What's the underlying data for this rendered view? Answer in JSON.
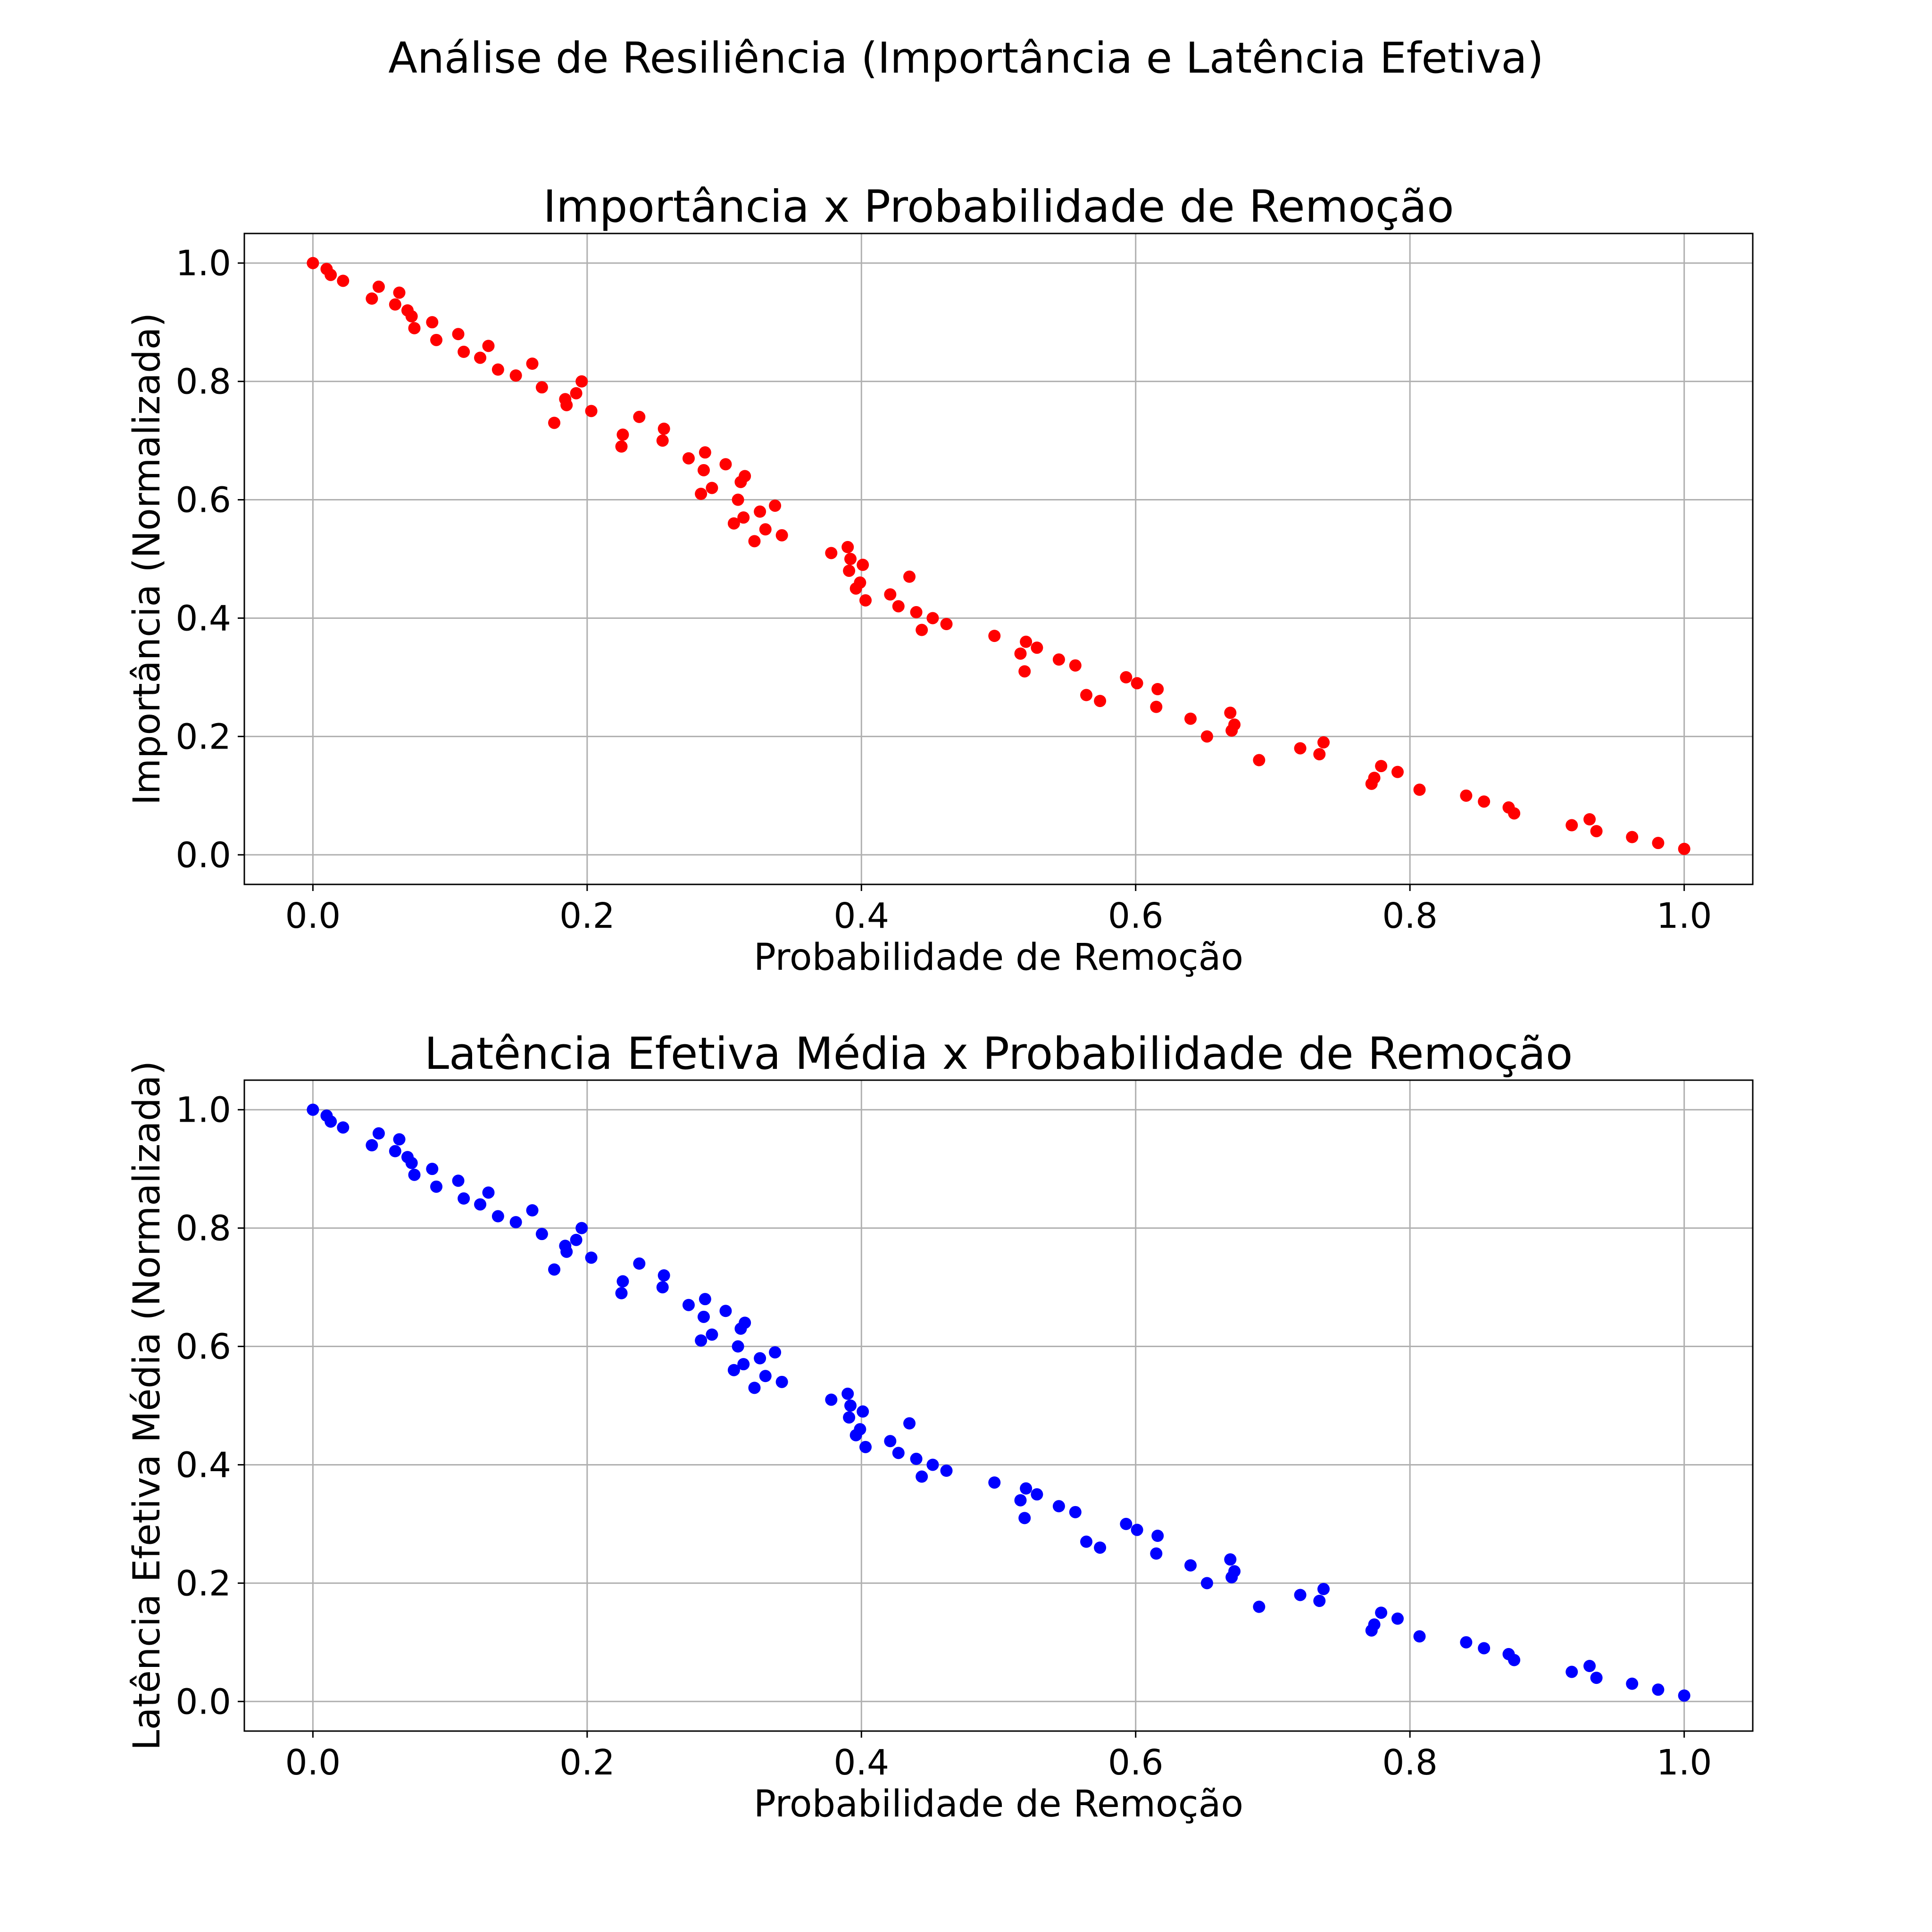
{
  "suptitle": "Análise de Resiliência (Importância e Latência Efetiva)",
  "chart_data": [
    {
      "type": "scatter",
      "title": "Importância x Probabilidade de Remoção",
      "xlabel": "Probabilidade de Remoção",
      "ylabel": "Importância (Normalizada)",
      "xlim": [
        -0.05,
        1.05
      ],
      "ylim": [
        -0.05,
        1.05
      ],
      "xticks": [
        "0.0",
        "0.2",
        "0.4",
        "0.6",
        "0.8",
        "1.0"
      ],
      "yticks": [
        "0.0",
        "0.2",
        "0.4",
        "0.6",
        "0.8",
        "1.0"
      ],
      "grid": true,
      "color": "#ff0000",
      "points": [
        [
          0.0,
          1.0
        ],
        [
          0.01,
          0.99
        ],
        [
          0.013,
          0.98
        ],
        [
          0.022,
          0.97
        ],
        [
          0.043,
          0.94
        ],
        [
          0.048,
          0.96
        ],
        [
          0.06,
          0.93
        ],
        [
          0.063,
          0.95
        ],
        [
          0.069,
          0.92
        ],
        [
          0.072,
          0.91
        ],
        [
          0.074,
          0.89
        ],
        [
          0.087,
          0.9
        ],
        [
          0.09,
          0.87
        ],
        [
          0.106,
          0.88
        ],
        [
          0.11,
          0.85
        ],
        [
          0.122,
          0.84
        ],
        [
          0.128,
          0.86
        ],
        [
          0.135,
          0.82
        ],
        [
          0.148,
          0.81
        ],
        [
          0.16,
          0.83
        ],
        [
          0.167,
          0.79
        ],
        [
          0.176,
          0.73
        ],
        [
          0.184,
          0.77
        ],
        [
          0.185,
          0.76
        ],
        [
          0.192,
          0.78
        ],
        [
          0.196,
          0.8
        ],
        [
          0.203,
          0.75
        ],
        [
          0.225,
          0.69
        ],
        [
          0.226,
          0.71
        ],
        [
          0.238,
          0.74
        ],
        [
          0.255,
          0.7
        ],
        [
          0.256,
          0.72
        ],
        [
          0.274,
          0.67
        ],
        [
          0.283,
          0.61
        ],
        [
          0.285,
          0.65
        ],
        [
          0.286,
          0.68
        ],
        [
          0.291,
          0.62
        ],
        [
          0.301,
          0.66
        ],
        [
          0.307,
          0.56
        ],
        [
          0.31,
          0.6
        ],
        [
          0.312,
          0.63
        ],
        [
          0.314,
          0.57
        ],
        [
          0.315,
          0.64
        ],
        [
          0.322,
          0.53
        ],
        [
          0.326,
          0.58
        ],
        [
          0.33,
          0.55
        ],
        [
          0.337,
          0.59
        ],
        [
          0.342,
          0.54
        ],
        [
          0.378,
          0.51
        ],
        [
          0.39,
          0.52
        ],
        [
          0.391,
          0.48
        ],
        [
          0.392,
          0.5
        ],
        [
          0.396,
          0.45
        ],
        [
          0.399,
          0.46
        ],
        [
          0.401,
          0.49
        ],
        [
          0.403,
          0.43
        ],
        [
          0.421,
          0.44
        ],
        [
          0.427,
          0.42
        ],
        [
          0.435,
          0.47
        ],
        [
          0.44,
          0.41
        ],
        [
          0.444,
          0.38
        ],
        [
          0.452,
          0.4
        ],
        [
          0.462,
          0.39
        ],
        [
          0.497,
          0.37
        ],
        [
          0.516,
          0.34
        ],
        [
          0.519,
          0.31
        ],
        [
          0.52,
          0.36
        ],
        [
          0.528,
          0.35
        ],
        [
          0.544,
          0.33
        ],
        [
          0.556,
          0.32
        ],
        [
          0.564,
          0.27
        ],
        [
          0.574,
          0.26
        ],
        [
          0.593,
          0.3
        ],
        [
          0.601,
          0.29
        ],
        [
          0.615,
          0.25
        ],
        [
          0.616,
          0.28
        ],
        [
          0.64,
          0.23
        ],
        [
          0.652,
          0.2
        ],
        [
          0.669,
          0.24
        ],
        [
          0.67,
          0.21
        ],
        [
          0.672,
          0.22
        ],
        [
          0.69,
          0.16
        ],
        [
          0.72,
          0.18
        ],
        [
          0.734,
          0.17
        ],
        [
          0.737,
          0.19
        ],
        [
          0.772,
          0.12
        ],
        [
          0.774,
          0.13
        ],
        [
          0.779,
          0.15
        ],
        [
          0.791,
          0.14
        ],
        [
          0.807,
          0.11
        ],
        [
          0.841,
          0.1
        ],
        [
          0.854,
          0.09
        ],
        [
          0.872,
          0.08
        ],
        [
          0.876,
          0.07
        ],
        [
          0.918,
          0.05
        ],
        [
          0.931,
          0.06
        ],
        [
          0.936,
          0.04
        ],
        [
          0.962,
          0.03
        ],
        [
          0.981,
          0.02
        ],
        [
          1.0,
          0.01
        ]
      ]
    },
    {
      "type": "scatter",
      "title": "Latência Efetiva Média x Probabilidade de Remoção",
      "xlabel": "Probabilidade de Remoção",
      "ylabel": "Latência Efetiva Média (Normalizada)",
      "xlim": [
        -0.05,
        1.05
      ],
      "ylim": [
        -0.05,
        1.05
      ],
      "xticks": [
        "0.0",
        "0.2",
        "0.4",
        "0.6",
        "0.8",
        "1.0"
      ],
      "yticks": [
        "0.0",
        "0.2",
        "0.4",
        "0.6",
        "0.8",
        "1.0"
      ],
      "grid": true,
      "color": "#0000ff",
      "points": [
        [
          0.0,
          1.0
        ],
        [
          0.01,
          0.99
        ],
        [
          0.013,
          0.98
        ],
        [
          0.022,
          0.97
        ],
        [
          0.043,
          0.94
        ],
        [
          0.048,
          0.96
        ],
        [
          0.06,
          0.93
        ],
        [
          0.063,
          0.95
        ],
        [
          0.069,
          0.92
        ],
        [
          0.072,
          0.91
        ],
        [
          0.074,
          0.89
        ],
        [
          0.087,
          0.9
        ],
        [
          0.09,
          0.87
        ],
        [
          0.106,
          0.88
        ],
        [
          0.11,
          0.85
        ],
        [
          0.122,
          0.84
        ],
        [
          0.128,
          0.86
        ],
        [
          0.135,
          0.82
        ],
        [
          0.148,
          0.81
        ],
        [
          0.16,
          0.83
        ],
        [
          0.167,
          0.79
        ],
        [
          0.176,
          0.73
        ],
        [
          0.184,
          0.77
        ],
        [
          0.185,
          0.76
        ],
        [
          0.192,
          0.78
        ],
        [
          0.196,
          0.8
        ],
        [
          0.203,
          0.75
        ],
        [
          0.225,
          0.69
        ],
        [
          0.226,
          0.71
        ],
        [
          0.238,
          0.74
        ],
        [
          0.255,
          0.7
        ],
        [
          0.256,
          0.72
        ],
        [
          0.274,
          0.67
        ],
        [
          0.283,
          0.61
        ],
        [
          0.285,
          0.65
        ],
        [
          0.286,
          0.68
        ],
        [
          0.291,
          0.62
        ],
        [
          0.301,
          0.66
        ],
        [
          0.307,
          0.56
        ],
        [
          0.31,
          0.6
        ],
        [
          0.312,
          0.63
        ],
        [
          0.314,
          0.57
        ],
        [
          0.315,
          0.64
        ],
        [
          0.322,
          0.53
        ],
        [
          0.326,
          0.58
        ],
        [
          0.33,
          0.55
        ],
        [
          0.337,
          0.59
        ],
        [
          0.342,
          0.54
        ],
        [
          0.378,
          0.51
        ],
        [
          0.39,
          0.52
        ],
        [
          0.391,
          0.48
        ],
        [
          0.392,
          0.5
        ],
        [
          0.396,
          0.45
        ],
        [
          0.399,
          0.46
        ],
        [
          0.401,
          0.49
        ],
        [
          0.403,
          0.43
        ],
        [
          0.421,
          0.44
        ],
        [
          0.427,
          0.42
        ],
        [
          0.435,
          0.47
        ],
        [
          0.44,
          0.41
        ],
        [
          0.444,
          0.38
        ],
        [
          0.452,
          0.4
        ],
        [
          0.462,
          0.39
        ],
        [
          0.497,
          0.37
        ],
        [
          0.516,
          0.34
        ],
        [
          0.519,
          0.31
        ],
        [
          0.52,
          0.36
        ],
        [
          0.528,
          0.35
        ],
        [
          0.544,
          0.33
        ],
        [
          0.556,
          0.32
        ],
        [
          0.564,
          0.27
        ],
        [
          0.574,
          0.26
        ],
        [
          0.593,
          0.3
        ],
        [
          0.601,
          0.29
        ],
        [
          0.615,
          0.25
        ],
        [
          0.616,
          0.28
        ],
        [
          0.64,
          0.23
        ],
        [
          0.652,
          0.2
        ],
        [
          0.669,
          0.24
        ],
        [
          0.67,
          0.21
        ],
        [
          0.672,
          0.22
        ],
        [
          0.69,
          0.16
        ],
        [
          0.72,
          0.18
        ],
        [
          0.734,
          0.17
        ],
        [
          0.737,
          0.19
        ],
        [
          0.772,
          0.12
        ],
        [
          0.774,
          0.13
        ],
        [
          0.779,
          0.15
        ],
        [
          0.791,
          0.14
        ],
        [
          0.807,
          0.11
        ],
        [
          0.841,
          0.1
        ],
        [
          0.854,
          0.09
        ],
        [
          0.872,
          0.08
        ],
        [
          0.876,
          0.07
        ],
        [
          0.918,
          0.05
        ],
        [
          0.931,
          0.06
        ],
        [
          0.936,
          0.04
        ],
        [
          0.962,
          0.03
        ],
        [
          0.981,
          0.02
        ],
        [
          1.0,
          0.01
        ]
      ]
    }
  ]
}
